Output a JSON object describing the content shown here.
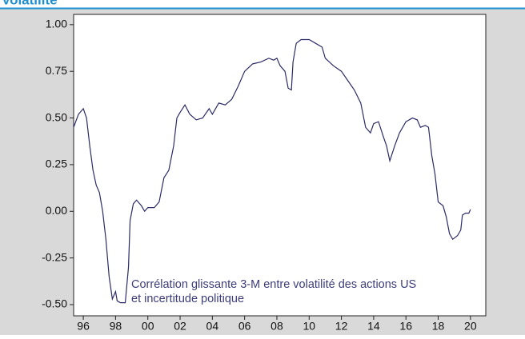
{
  "chart_data": {
    "type": "line",
    "title": "Volatilité",
    "annotations": [
      "Corrélation glissante 3-M entre volatilité des actions US",
      "et incertitude politique"
    ],
    "x": [
      1995.4,
      1995.7,
      1996.0,
      1996.2,
      1996.4,
      1996.6,
      1996.8,
      1997.0,
      1997.2,
      1997.4,
      1997.6,
      1997.8,
      1998.0,
      1998.1,
      1998.3,
      1998.6,
      1998.8,
      1998.9,
      1999.1,
      1999.3,
      1999.6,
      1999.8,
      2000.0,
      2000.4,
      2000.7,
      2001.0,
      2001.3,
      2001.6,
      2001.8,
      2002.0,
      2002.3,
      2002.6,
      2003.0,
      2003.4,
      2003.8,
      2004.0,
      2004.4,
      2004.8,
      2005.2,
      2005.6,
      2006.0,
      2006.5,
      2007.0,
      2007.5,
      2007.8,
      2008.0,
      2008.2,
      2008.5,
      2008.7,
      2008.9,
      2009.0,
      2009.2,
      2009.5,
      2010.0,
      2010.4,
      2010.8,
      2011.0,
      2011.5,
      2012.0,
      2012.4,
      2012.8,
      2013.2,
      2013.5,
      2013.8,
      2014.0,
      2014.3,
      2014.6,
      2014.8,
      2015.0,
      2015.3,
      2015.6,
      2016.0,
      2016.4,
      2016.7,
      2016.9,
      2017.2,
      2017.4,
      2017.6,
      2017.8,
      2018.0,
      2018.3,
      2018.5,
      2018.7,
      2018.9,
      2019.2,
      2019.4,
      2019.5,
      2019.7,
      2019.9,
      2020.0
    ],
    "series": [
      {
        "color": "#2b2b66",
        "values": [
          0.45,
          0.52,
          0.55,
          0.5,
          0.35,
          0.22,
          0.14,
          0.1,
          0.0,
          -0.15,
          -0.35,
          -0.47,
          -0.43,
          -0.48,
          -0.49,
          -0.49,
          -0.3,
          -0.05,
          0.04,
          0.06,
          0.03,
          0.0,
          0.02,
          0.02,
          0.05,
          0.18,
          0.22,
          0.35,
          0.5,
          0.53,
          0.57,
          0.52,
          0.49,
          0.5,
          0.55,
          0.52,
          0.58,
          0.57,
          0.6,
          0.67,
          0.75,
          0.79,
          0.8,
          0.82,
          0.81,
          0.82,
          0.78,
          0.75,
          0.66,
          0.65,
          0.8,
          0.9,
          0.92,
          0.92,
          0.9,
          0.88,
          0.82,
          0.78,
          0.75,
          0.7,
          0.65,
          0.58,
          0.45,
          0.42,
          0.47,
          0.48,
          0.4,
          0.35,
          0.27,
          0.35,
          0.42,
          0.48,
          0.5,
          0.49,
          0.45,
          0.46,
          0.45,
          0.3,
          0.2,
          0.05,
          0.03,
          -0.03,
          -0.12,
          -0.15,
          -0.13,
          -0.1,
          -0.02,
          -0.01,
          -0.01,
          0.01
        ]
      }
    ],
    "xlim": [
      1995.4,
      2020.95
    ],
    "xticks": [
      {
        "value": 1996,
        "label": "96"
      },
      {
        "value": 1998,
        "label": "98"
      },
      {
        "value": 2000,
        "label": "00"
      },
      {
        "value": 2002,
        "label": "02"
      },
      {
        "value": 2004,
        "label": "04"
      },
      {
        "value": 2006,
        "label": "06"
      },
      {
        "value": 2008,
        "label": "08"
      },
      {
        "value": 2010,
        "label": "10"
      },
      {
        "value": 2012,
        "label": "12"
      },
      {
        "value": 2014,
        "label": "14"
      },
      {
        "value": 2016,
        "label": "16"
      },
      {
        "value": 2018,
        "label": "18"
      },
      {
        "value": 2020,
        "label": "20"
      }
    ],
    "ylim": [
      -0.56,
      1.055
    ],
    "yticks": [
      {
        "value": 1,
        "label": "1.00"
      },
      {
        "value": 0.75,
        "label": "0.75"
      },
      {
        "value": 0.5,
        "label": "0.50"
      },
      {
        "value": 0.25,
        "label": "0.25"
      },
      {
        "value": 0,
        "label": "0.00"
      },
      {
        "value": -0.25,
        "label": "-0.25"
      },
      {
        "value": -0.5,
        "label": "-0.50"
      }
    ]
  }
}
